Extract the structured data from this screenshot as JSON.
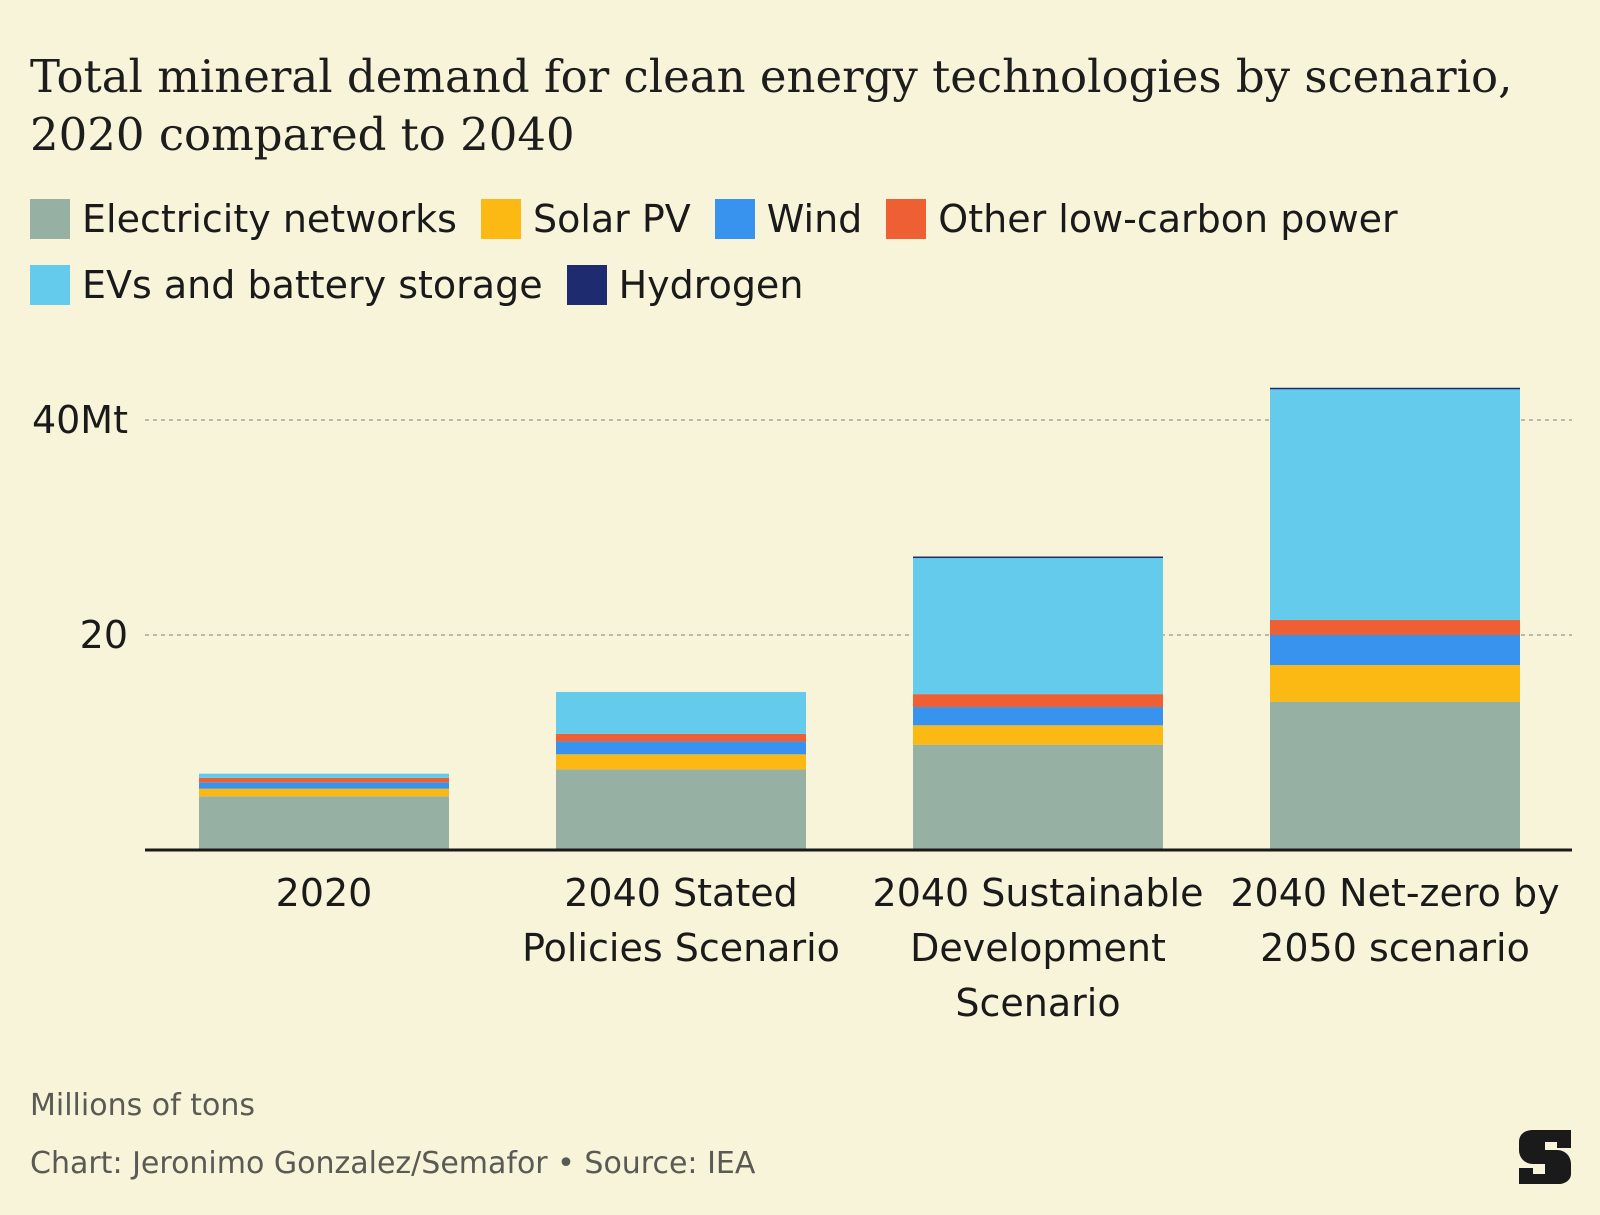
{
  "title": "Total mineral demand for clean energy technologies by scenario, 2020 compared to 2040",
  "legend": [
    {
      "name": "Electricity networks",
      "color": "#97b0a4"
    },
    {
      "name": "Solar PV",
      "color": "#fdb913"
    },
    {
      "name": "Wind",
      "color": "#3893ef"
    },
    {
      "name": "Other low-carbon power",
      "color": "#ee5f33"
    },
    {
      "name": "EVs and battery storage",
      "color": "#64cbec"
    },
    {
      "name": "Hydrogen",
      "color": "#1e2b6f"
    }
  ],
  "chart_data": {
    "type": "bar",
    "stacked": true,
    "categories": [
      [
        "2020"
      ],
      [
        "2040 Stated",
        "Policies Scenario"
      ],
      [
        "2040 Sustainable",
        "Development",
        "Scenario"
      ],
      [
        "2040 Net-zero by",
        "2050 scenario"
      ]
    ],
    "series": [
      {
        "name": "Electricity networks",
        "color": "#97b0a4",
        "values": [
          5.0,
          7.5,
          9.8,
          13.8
        ]
      },
      {
        "name": "Solar PV",
        "color": "#fdb913",
        "values": [
          0.7,
          1.4,
          1.8,
          3.4
        ]
      },
      {
        "name": "Wind",
        "color": "#3893ef",
        "values": [
          0.6,
          1.2,
          1.7,
          2.8
        ]
      },
      {
        "name": "Other low-carbon power",
        "color": "#ee5f33",
        "values": [
          0.4,
          0.7,
          1.2,
          1.4
        ]
      },
      {
        "name": "EVs and battery storage",
        "color": "#64cbec",
        "values": [
          0.4,
          3.9,
          12.7,
          21.5
        ]
      },
      {
        "name": "Hydrogen",
        "color": "#1e2b6f",
        "values": [
          0.0,
          0.0,
          0.1,
          0.1
        ]
      }
    ],
    "y_ticks": [
      {
        "value": 20,
        "label": "20"
      },
      {
        "value": 40,
        "label": "40Mt"
      }
    ],
    "ylim": [
      0,
      43
    ],
    "grid": true,
    "legend_position": "top"
  },
  "footer": {
    "units": "Millions of tons",
    "credit": "Chart: Jeronimo Gonzalez/Semafor • Source: IEA"
  },
  "brand_color": "#1a1a1a"
}
